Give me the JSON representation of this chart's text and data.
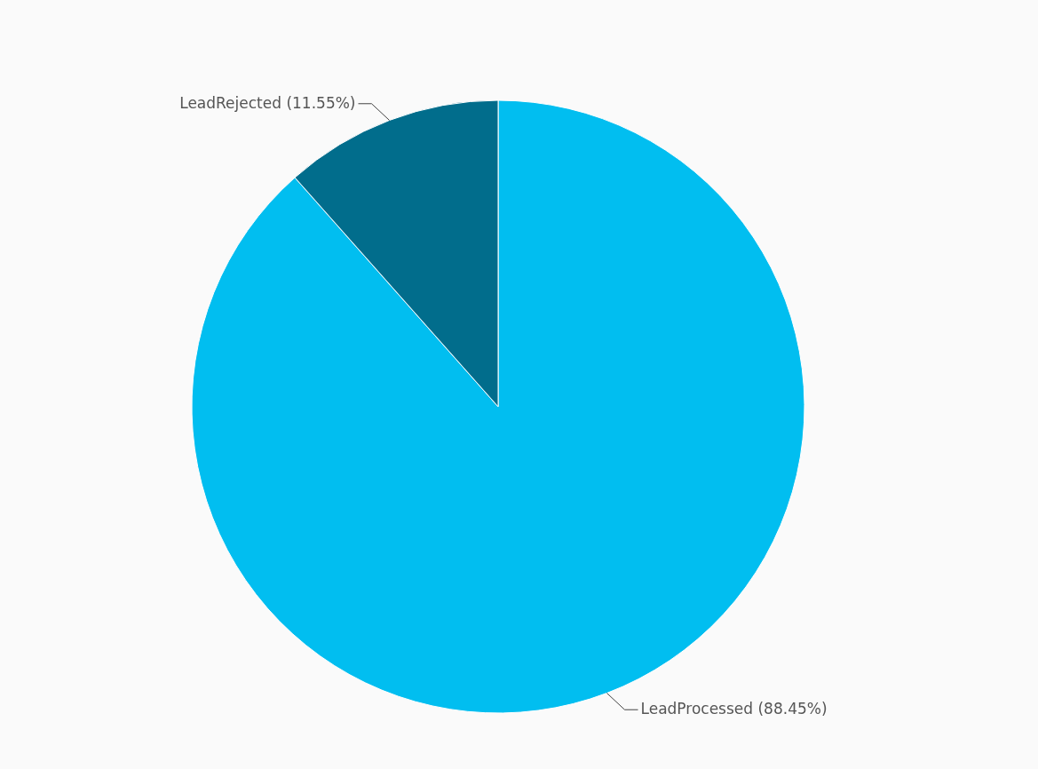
{
  "chart_data": {
    "type": "pie",
    "categories": [
      "LeadProcessed",
      "LeadRejected"
    ],
    "values": [
      88.45,
      11.55
    ],
    "colors": [
      "#01bef0",
      "#016d8c"
    ],
    "value_labels": [
      "(88.45%)",
      "(11.55%)"
    ]
  }
}
